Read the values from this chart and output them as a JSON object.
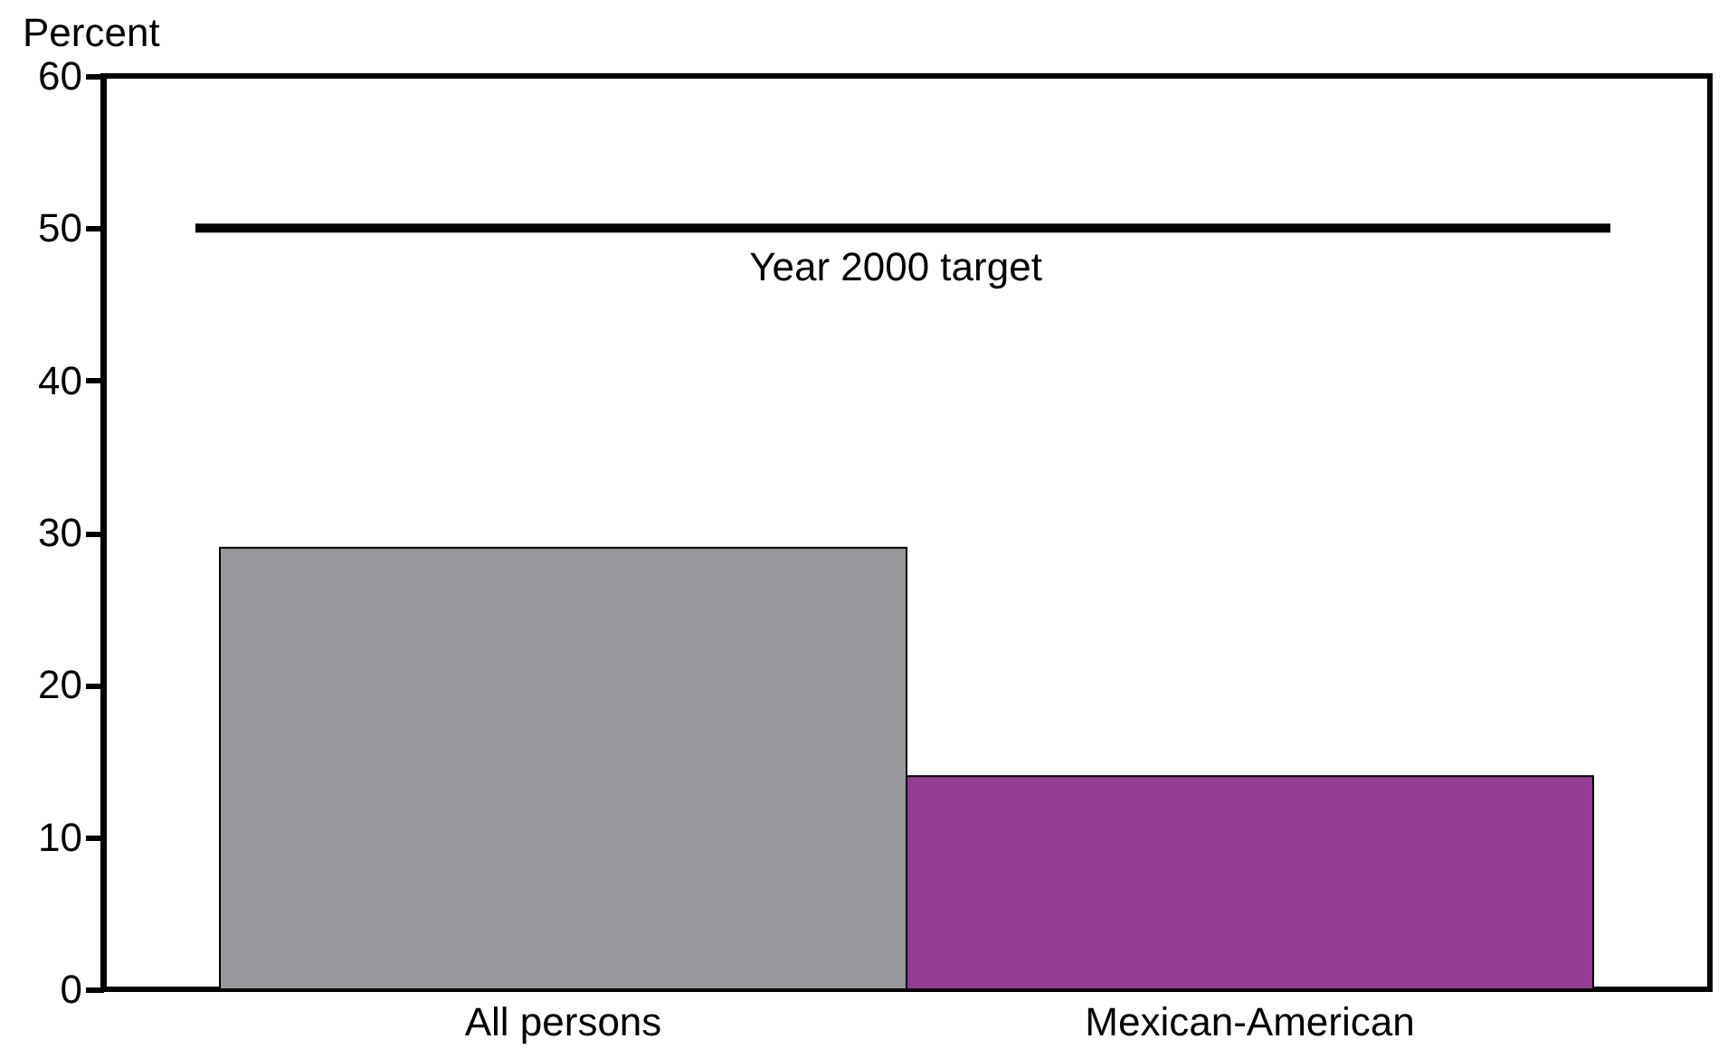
{
  "chart_data": {
    "type": "bar",
    "ylabel": "Percent",
    "categories": [
      "All persons",
      "Mexican-American"
    ],
    "values": [
      29,
      14
    ],
    "colors": [
      "#97989c",
      "#923c93"
    ],
    "ylim": [
      0,
      60
    ],
    "yticks": [
      0,
      10,
      20,
      30,
      40,
      50,
      60
    ],
    "ref_lines": [
      {
        "axis": "y",
        "value": 50,
        "label": "Year 2000 target",
        "color": "#000000"
      }
    ],
    "grid": false
  }
}
